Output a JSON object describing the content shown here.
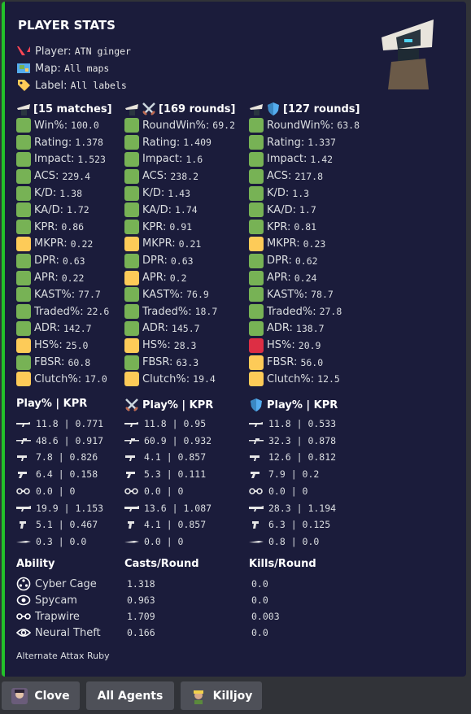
{
  "embed": {
    "title": "PLAYER STATS",
    "accent": "#23c12a",
    "player_label": "Player:",
    "player_value": "ATN ginger",
    "map_label": "Map:",
    "map_value": "All maps",
    "tag_label": "Label:",
    "tag_value": "All labels",
    "footer": "Alternate Attax Ruby"
  },
  "columns": [
    {
      "header": "[15 matches]",
      "icons": [
        "agent-icon"
      ],
      "stats": [
        {
          "label": "Win%:",
          "value": "100.0",
          "color": "green"
        },
        {
          "label": "Rating:",
          "value": "1.378",
          "color": "green"
        },
        {
          "label": "Impact:",
          "value": "1.523",
          "color": "green"
        },
        {
          "label": "ACS:",
          "value": "229.4",
          "color": "green"
        },
        {
          "label": "K/D:",
          "value": "1.38",
          "color": "green"
        },
        {
          "label": "KA/D:",
          "value": "1.72",
          "color": "green"
        },
        {
          "label": "KPR:",
          "value": "0.86",
          "color": "green"
        },
        {
          "label": "MKPR:",
          "value": "0.22",
          "color": "yellow"
        },
        {
          "label": "DPR:",
          "value": "0.63",
          "color": "green"
        },
        {
          "label": "APR:",
          "value": "0.22",
          "color": "green"
        },
        {
          "label": "KAST%:",
          "value": "77.7",
          "color": "green"
        },
        {
          "label": "Traded%:",
          "value": "22.6",
          "color": "green"
        },
        {
          "label": "ADR:",
          "value": "142.7",
          "color": "green"
        },
        {
          "label": "HS%:",
          "value": "25.0",
          "color": "yellow"
        },
        {
          "label": "FBSR:",
          "value": "60.8",
          "color": "green"
        },
        {
          "label": "Clutch%:",
          "value": "17.0",
          "color": "yellow"
        }
      ]
    },
    {
      "header": "[169 rounds]",
      "icons": [
        "agent-icon",
        "crossed-swords-icon"
      ],
      "stats": [
        {
          "label": "RoundWin%:",
          "value": "69.2",
          "color": "green"
        },
        {
          "label": "Rating:",
          "value": "1.409",
          "color": "green"
        },
        {
          "label": "Impact:",
          "value": "1.6",
          "color": "green"
        },
        {
          "label": "ACS:",
          "value": "238.2",
          "color": "green"
        },
        {
          "label": "K/D:",
          "value": "1.43",
          "color": "green"
        },
        {
          "label": "KA/D:",
          "value": "1.74",
          "color": "green"
        },
        {
          "label": "KPR:",
          "value": "0.91",
          "color": "green"
        },
        {
          "label": "MKPR:",
          "value": "0.21",
          "color": "yellow"
        },
        {
          "label": "DPR:",
          "value": "0.63",
          "color": "green"
        },
        {
          "label": "APR:",
          "value": "0.2",
          "color": "yellow"
        },
        {
          "label": "KAST%:",
          "value": "76.9",
          "color": "green"
        },
        {
          "label": "Traded%:",
          "value": "18.7",
          "color": "green"
        },
        {
          "label": "ADR:",
          "value": "145.7",
          "color": "green"
        },
        {
          "label": "HS%:",
          "value": "28.3",
          "color": "yellow"
        },
        {
          "label": "FBSR:",
          "value": "63.3",
          "color": "green"
        },
        {
          "label": "Clutch%:",
          "value": "19.4",
          "color": "yellow"
        }
      ]
    },
    {
      "header": "[127 rounds]",
      "icons": [
        "agent-icon",
        "shield-icon"
      ],
      "stats": [
        {
          "label": "RoundWin%:",
          "value": "63.8",
          "color": "green"
        },
        {
          "label": "Rating:",
          "value": "1.337",
          "color": "green"
        },
        {
          "label": "Impact:",
          "value": "1.42",
          "color": "green"
        },
        {
          "label": "ACS:",
          "value": "217.8",
          "color": "green"
        },
        {
          "label": "K/D:",
          "value": "1.3",
          "color": "green"
        },
        {
          "label": "KA/D:",
          "value": "1.7",
          "color": "green"
        },
        {
          "label": "KPR:",
          "value": "0.81",
          "color": "green"
        },
        {
          "label": "MKPR:",
          "value": "0.23",
          "color": "yellow"
        },
        {
          "label": "DPR:",
          "value": "0.62",
          "color": "green"
        },
        {
          "label": "APR:",
          "value": "0.24",
          "color": "green"
        },
        {
          "label": "KAST%:",
          "value": "78.7",
          "color": "green"
        },
        {
          "label": "Traded%:",
          "value": "27.8",
          "color": "green"
        },
        {
          "label": "ADR:",
          "value": "138.7",
          "color": "green"
        },
        {
          "label": "HS%:",
          "value": "20.9",
          "color": "red"
        },
        {
          "label": "FBSR:",
          "value": "56.0",
          "color": "yellow"
        },
        {
          "label": "Clutch%:",
          "value": "12.5",
          "color": "yellow"
        }
      ]
    }
  ],
  "weapons": {
    "headers": [
      "Play% | KPR",
      "Play% | KPR",
      "Play% | KPR"
    ],
    "header_icons": [
      "",
      "crossed-swords-icon",
      "shield-icon"
    ],
    "icons": [
      "rifle-icon",
      "sniper-icon",
      "smg-icon",
      "pistol-icon",
      "shotgun-icon",
      "heavy-icon",
      "sidearm-icon",
      "knife-icon"
    ],
    "rows": [
      [
        "11.8 | 0.771",
        "11.8 | 0.95",
        "11.8 | 0.533"
      ],
      [
        "48.6 | 0.917",
        "60.9 | 0.932",
        "32.3 | 0.878"
      ],
      [
        "7.8 | 0.826",
        "4.1 | 0.857",
        "12.6 | 0.812"
      ],
      [
        "6.4 | 0.158",
        "5.3 | 0.111",
        "7.9 | 0.2"
      ],
      [
        "0.0 | 0",
        "0.0 | 0",
        "0.0 | 0"
      ],
      [
        "19.9 | 1.153",
        "13.6 | 1.087",
        "28.3 | 1.194"
      ],
      [
        "5.1 | 0.467",
        "4.1 | 0.857",
        "6.3 | 0.125"
      ],
      [
        "0.3 | 0.0",
        "0.0 | 0",
        "0.8 | 0.0"
      ]
    ]
  },
  "abilities": {
    "headers": [
      "Ability",
      "Casts/Round",
      "Kills/Round"
    ],
    "rows": [
      {
        "name": "Cyber Cage",
        "icon": "cyber-cage-icon",
        "casts": "1.318",
        "kills": "0.0"
      },
      {
        "name": "Spycam",
        "icon": "spycam-icon",
        "casts": "0.963",
        "kills": "0.0"
      },
      {
        "name": "Trapwire",
        "icon": "trapwire-icon",
        "casts": "1.709",
        "kills": "0.003"
      },
      {
        "name": "Neural Theft",
        "icon": "neural-theft-icon",
        "casts": "0.166",
        "kills": "0.0"
      }
    ]
  },
  "buttons": [
    {
      "label": "Clove",
      "icon": "clove-avatar-icon"
    },
    {
      "label": "All Agents",
      "icon": ""
    },
    {
      "label": "Killjoy",
      "icon": "killjoy-avatar-icon"
    }
  ]
}
